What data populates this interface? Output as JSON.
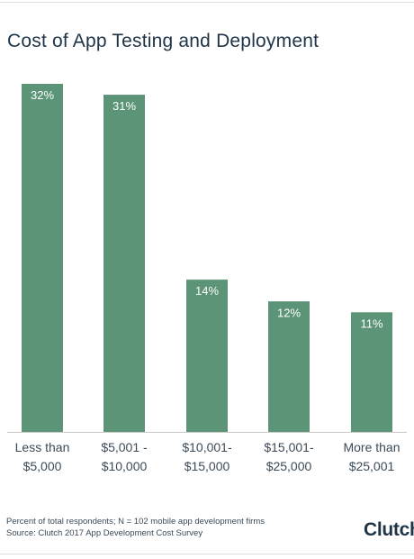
{
  "chart_data": {
    "type": "bar",
    "title": "Cost of App Testing and Deployment",
    "categories": [
      [
        "Less than",
        "$5,000"
      ],
      [
        "$5,001 -",
        "$10,000"
      ],
      [
        "$10,001-",
        "$15,000"
      ],
      [
        "$15,001-",
        "$25,000"
      ],
      [
        "More than",
        "$25,001"
      ]
    ],
    "values": [
      32,
      31,
      14,
      12,
      11
    ],
    "value_labels": [
      "32%",
      "31%",
      "14%",
      "12%",
      "11%"
    ],
    "ylim": [
      0,
      32
    ],
    "grid": false,
    "bar_color": "#5c9478",
    "label_color": "#ffffff"
  },
  "footnotes": {
    "line1": "Percent of total respondents; N = 102 mobile app development firms",
    "line2": "Source: Clutch 2017 App Development Cost Survey"
  },
  "logo": {
    "text": "Clutch"
  }
}
